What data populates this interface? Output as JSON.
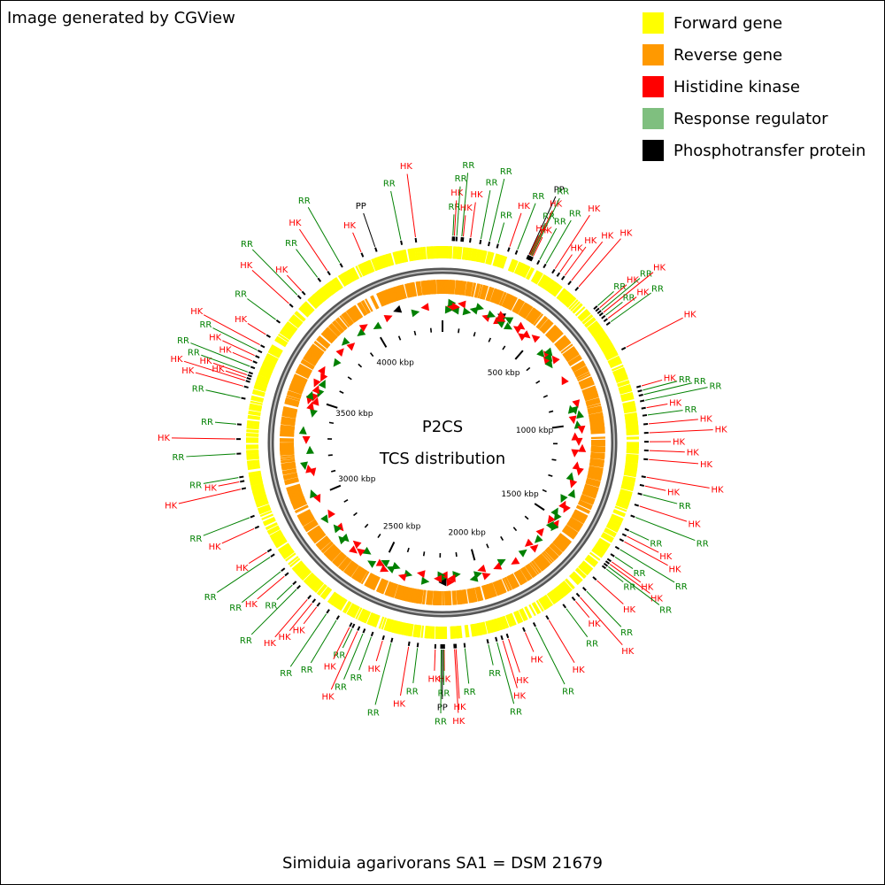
{
  "credit": "Image generated by CGView",
  "legend": [
    {
      "label": "Forward gene",
      "color": "#ffff00"
    },
    {
      "label": "Reverse gene",
      "color": "#ff9900"
    },
    {
      "label": "Histidine kinase",
      "color": "#ff0000"
    },
    {
      "label": "Response regulator",
      "color": "#7fbf7f"
    },
    {
      "label": "Phosphotransfer protein",
      "color": "#000000"
    }
  ],
  "center": {
    "line1": "P2CS",
    "line2": "TCS distribution"
  },
  "caption": "Simiduia agarivorans SA1 = DSM 21679",
  "colors": {
    "forward": "#ffff00",
    "reverse": "#ff9900",
    "hk": "#ff0000",
    "rr": "#008000",
    "pp": "#000000",
    "backbone": "#808080"
  },
  "genome": {
    "length_kbp": 4371,
    "tick_labels": [
      {
        "kbp": 500,
        "label": "500 kbp"
      },
      {
        "kbp": 1000,
        "label": "1000 kbp"
      },
      {
        "kbp": 1500,
        "label": "1500 kbp"
      },
      {
        "kbp": 2000,
        "label": "2000 kbp"
      },
      {
        "kbp": 2500,
        "label": "2500 kbp"
      },
      {
        "kbp": 3000,
        "label": "3000 kbp"
      },
      {
        "kbp": 3500,
        "label": "3500 kbp"
      },
      {
        "kbp": 4000,
        "label": "4000 kbp"
      }
    ],
    "features": [
      {
        "kbp": 35,
        "type": "RR"
      },
      {
        "kbp": 40,
        "type": "HK"
      },
      {
        "kbp": 48,
        "type": "RR"
      },
      {
        "kbp": 65,
        "type": "RR"
      },
      {
        "kbp": 70,
        "type": "HK"
      },
      {
        "kbp": 95,
        "type": "HK"
      },
      {
        "kbp": 130,
        "type": "RR"
      },
      {
        "kbp": 160,
        "type": "RR"
      },
      {
        "kbp": 190,
        "type": "RR"
      },
      {
        "kbp": 230,
        "type": "HK"
      },
      {
        "kbp": 258,
        "type": "RR"
      },
      {
        "kbp": 300,
        "type": "PP"
      },
      {
        "kbp": 302,
        "type": "HK"
      },
      {
        "kbp": 305,
        "type": "RR"
      },
      {
        "kbp": 308,
        "type": "HK"
      },
      {
        "kbp": 311,
        "type": "RR"
      },
      {
        "kbp": 315,
        "type": "HK"
      },
      {
        "kbp": 340,
        "type": "RR"
      },
      {
        "kbp": 365,
        "type": "RR"
      },
      {
        "kbp": 400,
        "type": "HK"
      },
      {
        "kbp": 420,
        "type": "HK"
      },
      {
        "kbp": 440,
        "type": "HK"
      },
      {
        "kbp": 468,
        "type": "HK"
      },
      {
        "kbp": 500,
        "type": "HK"
      },
      {
        "kbp": 590,
        "type": "RR"
      },
      {
        "kbp": 600,
        "type": "HK"
      },
      {
        "kbp": 610,
        "type": "RR"
      },
      {
        "kbp": 620,
        "type": "HK"
      },
      {
        "kbp": 632,
        "type": "RR"
      },
      {
        "kbp": 645,
        "type": "HK"
      },
      {
        "kbp": 660,
        "type": "RR"
      },
      {
        "kbp": 760,
        "type": "HK"
      },
      {
        "kbp": 900,
        "type": "HK"
      },
      {
        "kbp": 915,
        "type": "RR"
      },
      {
        "kbp": 930,
        "type": "RR"
      },
      {
        "kbp": 950,
        "type": "RR"
      },
      {
        "kbp": 975,
        "type": "HK"
      },
      {
        "kbp": 1000,
        "type": "RR"
      },
      {
        "kbp": 1030,
        "type": "HK"
      },
      {
        "kbp": 1060,
        "type": "HK"
      },
      {
        "kbp": 1090,
        "type": "HK"
      },
      {
        "kbp": 1120,
        "type": "HK"
      },
      {
        "kbp": 1150,
        "type": "HK"
      },
      {
        "kbp": 1210,
        "type": "HK"
      },
      {
        "kbp": 1240,
        "type": "HK"
      },
      {
        "kbp": 1270,
        "type": "RR"
      },
      {
        "kbp": 1310,
        "type": "HK"
      },
      {
        "kbp": 1350,
        "type": "RR"
      },
      {
        "kbp": 1400,
        "type": "RR"
      },
      {
        "kbp": 1420,
        "type": "HK"
      },
      {
        "kbp": 1440,
        "type": "HK"
      },
      {
        "kbp": 1470,
        "type": "RR"
      },
      {
        "kbp": 1500,
        "type": "RR"
      },
      {
        "kbp": 1520,
        "type": "HK"
      },
      {
        "kbp": 1530,
        "type": "HK"
      },
      {
        "kbp": 1540,
        "type": "RR"
      },
      {
        "kbp": 1550,
        "type": "RR"
      },
      {
        "kbp": 1600,
        "type": "HK"
      },
      {
        "kbp": 1650,
        "type": "RR"
      },
      {
        "kbp": 1680,
        "type": "HK"
      },
      {
        "kbp": 1700,
        "type": "HK"
      },
      {
        "kbp": 1740,
        "type": "RR"
      },
      {
        "kbp": 1810,
        "type": "HK"
      },
      {
        "kbp": 1860,
        "type": "RR"
      },
      {
        "kbp": 1900,
        "type": "HK"
      },
      {
        "kbp": 1960,
        "type": "HK"
      },
      {
        "kbp": 1980,
        "type": "HK"
      },
      {
        "kbp": 2000,
        "type": "RR"
      },
      {
        "kbp": 2030,
        "type": "RR"
      },
      {
        "kbp": 2110,
        "type": "RR"
      },
      {
        "kbp": 2140,
        "type": "HK"
      },
      {
        "kbp": 2145,
        "type": "HK"
      },
      {
        "kbp": 2180,
        "type": "HK"
      },
      {
        "kbp": 2182,
        "type": "RR"
      },
      {
        "kbp": 2186,
        "type": "PP"
      },
      {
        "kbp": 2190,
        "type": "RR"
      },
      {
        "kbp": 2210,
        "type": "HK"
      },
      {
        "kbp": 2270,
        "type": "RR"
      },
      {
        "kbp": 2300,
        "type": "HK"
      },
      {
        "kbp": 2360,
        "type": "RR"
      },
      {
        "kbp": 2390,
        "type": "HK"
      },
      {
        "kbp": 2430,
        "type": "RR"
      },
      {
        "kbp": 2460,
        "type": "RR"
      },
      {
        "kbp": 2480,
        "type": "HK"
      },
      {
        "kbp": 2500,
        "type": "RR"
      },
      {
        "kbp": 2510,
        "type": "HK"
      },
      {
        "kbp": 2560,
        "type": "RR"
      },
      {
        "kbp": 2600,
        "type": "RR"
      },
      {
        "kbp": 2640,
        "type": "HK"
      },
      {
        "kbp": 2660,
        "type": "HK"
      },
      {
        "kbp": 2680,
        "type": "HK"
      },
      {
        "kbp": 2730,
        "type": "RR"
      },
      {
        "kbp": 2750,
        "type": "RR"
      },
      {
        "kbp": 2790,
        "type": "HK"
      },
      {
        "kbp": 2810,
        "type": "RR"
      },
      {
        "kbp": 2870,
        "type": "RR"
      },
      {
        "kbp": 2890,
        "type": "HK"
      },
      {
        "kbp": 2980,
        "type": "HK"
      },
      {
        "kbp": 3020,
        "type": "RR"
      },
      {
        "kbp": 3120,
        "type": "HK"
      },
      {
        "kbp": 3145,
        "type": "HK"
      },
      {
        "kbp": 3160,
        "type": "RR"
      },
      {
        "kbp": 3240,
        "type": "RR"
      },
      {
        "kbp": 3290,
        "type": "HK"
      },
      {
        "kbp": 3340,
        "type": "RR"
      },
      {
        "kbp": 3430,
        "type": "RR"
      },
      {
        "kbp": 3470,
        "type": "HK"
      },
      {
        "kbp": 3490,
        "type": "HK"
      },
      {
        "kbp": 3500,
        "type": "HK"
      },
      {
        "kbp": 3510,
        "type": "HK"
      },
      {
        "kbp": 3520,
        "type": "RR"
      },
      {
        "kbp": 3540,
        "type": "RR"
      },
      {
        "kbp": 3560,
        "type": "HK"
      },
      {
        "kbp": 3580,
        "type": "HK"
      },
      {
        "kbp": 3600,
        "type": "RR"
      },
      {
        "kbp": 3620,
        "type": "HK"
      },
      {
        "kbp": 3660,
        "type": "HK"
      },
      {
        "kbp": 3720,
        "type": "RR"
      },
      {
        "kbp": 3790,
        "type": "HK"
      },
      {
        "kbp": 3830,
        "type": "RR"
      },
      {
        "kbp": 3850,
        "type": "HK"
      },
      {
        "kbp": 3920,
        "type": "RR"
      },
      {
        "kbp": 3960,
        "type": "HK"
      },
      {
        "kbp": 4010,
        "type": "RR"
      },
      {
        "kbp": 4090,
        "type": "HK"
      },
      {
        "kbp": 4140,
        "type": "PP"
      },
      {
        "kbp": 4230,
        "type": "RR"
      },
      {
        "kbp": 4280,
        "type": "HK"
      }
    ]
  }
}
